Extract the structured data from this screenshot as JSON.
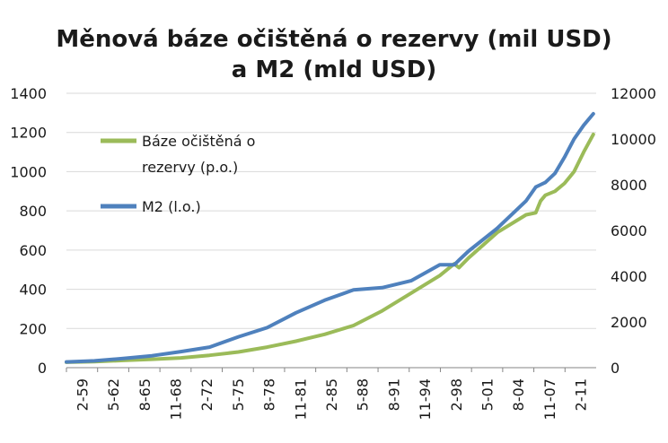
{
  "chart_data": {
    "type": "line",
    "title_lines": [
      "Měnová báze očištěná o rezervy (mil USD)",
      "a M2 (mld USD)"
    ],
    "x_tick_labels": [
      "2-59",
      "5-62",
      "8-65",
      "11-68",
      "2-72",
      "5-75",
      "8-78",
      "11-81",
      "2-85",
      "5-88",
      "8-91",
      "11-94",
      "2-98",
      "5-01",
      "8-04",
      "11-07",
      "2-11"
    ],
    "x": [
      1959.08,
      1962,
      1965,
      1968,
      1971,
      1974,
      1977,
      1980,
      1983,
      1986,
      1989,
      1992,
      1995,
      1998,
      1999.5,
      2000,
      2001,
      2004,
      2007,
      2008,
      2008.5,
      2009,
      2010,
      2011,
      2012,
      2013,
      2014
    ],
    "x_range": [
      1959.08,
      2014.3
    ],
    "y_left": {
      "ylim": [
        0,
        1400
      ],
      "ticks": [
        "0",
        "200",
        "400",
        "600",
        "800",
        "1000",
        "1200",
        "1400"
      ]
    },
    "y_right": {
      "ylim": [
        0,
        12000
      ],
      "ticks": [
        "0",
        "2000",
        "4000",
        "6000",
        "8000",
        "10000",
        "12000"
      ]
    },
    "grid": "horizontal",
    "legend_position": "top-left",
    "series": [
      {
        "name": "Báze očištěná o rezervy (p.o.)",
        "name_lines": [
          "Báze očištěná o",
          "rezervy (p.o.)"
        ],
        "axis": "left",
        "color": "#9bbb59",
        "values": [
          28,
          31,
          37,
          43,
          50,
          63,
          80,
          105,
          135,
          170,
          215,
          290,
          380,
          470,
          530,
          510,
          560,
          690,
          780,
          790,
          850,
          880,
          900,
          940,
          1000,
          1100,
          1190
        ]
      },
      {
        "name": "M2 (l.o.)",
        "axis": "right",
        "color": "#4f81bd",
        "values": [
          250,
          300,
          400,
          520,
          700,
          900,
          1350,
          1750,
          2400,
          2950,
          3400,
          3500,
          3800,
          4500,
          4500,
          4700,
          5100,
          6100,
          7300,
          7900,
          8000,
          8100,
          8500,
          9200,
          10000,
          10600,
          11100
        ]
      }
    ]
  }
}
